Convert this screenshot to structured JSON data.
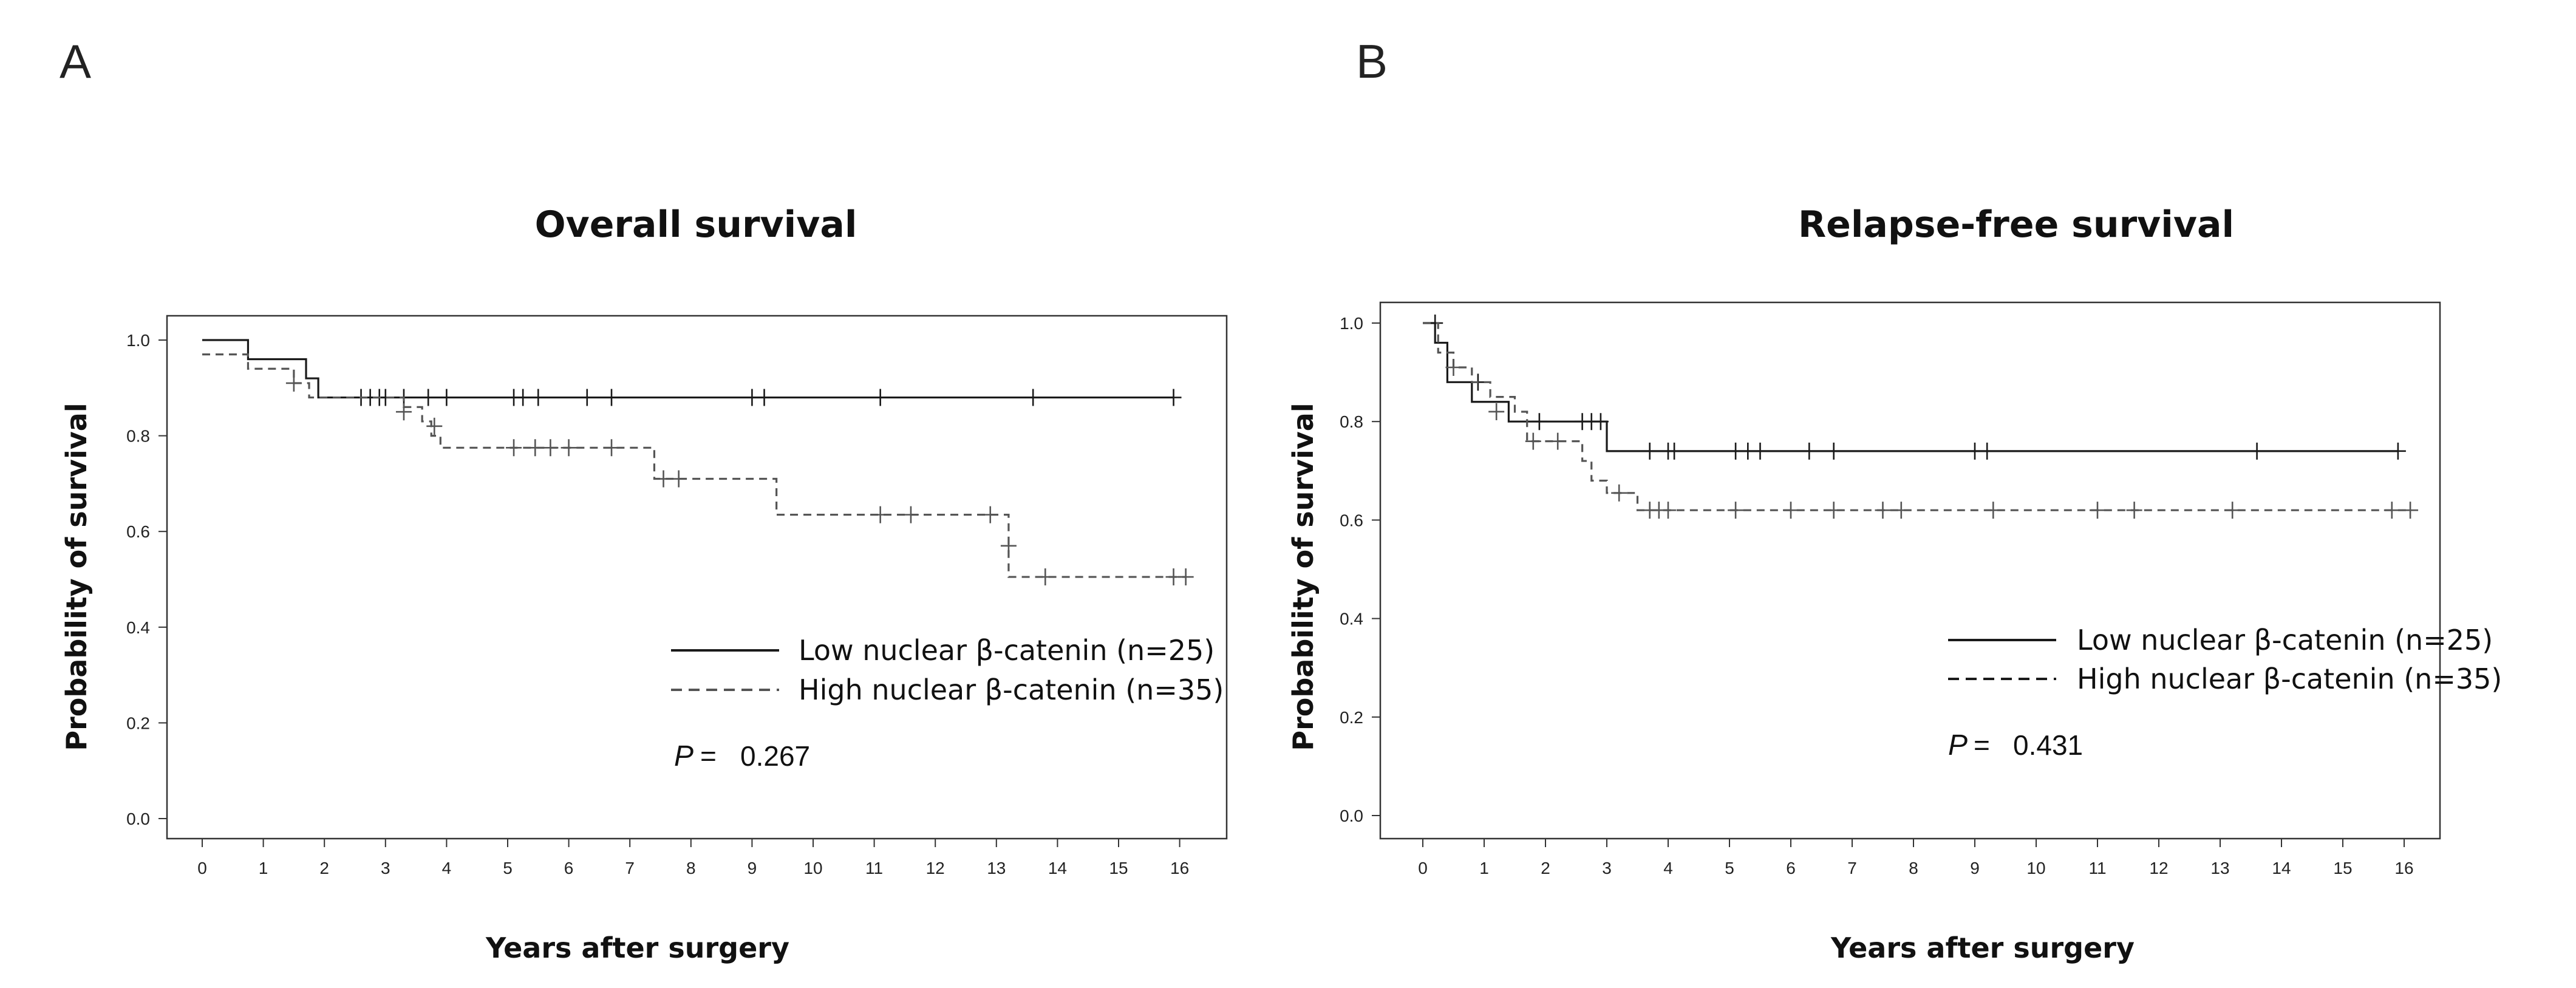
{
  "figure": {
    "panels": [
      "A",
      "B"
    ]
  },
  "chart_data": [
    {
      "panel": "A",
      "type": "line",
      "subtype": "kaplan-meier",
      "title": "Overall survival",
      "xlabel": "Years after surgery",
      "ylabel": "Probability of survival",
      "xlim": [
        0,
        16.5
      ],
      "ylim": [
        0,
        1.0
      ],
      "xticks": [
        0,
        1,
        2,
        3,
        4,
        5,
        6,
        7,
        8,
        9,
        10,
        11,
        12,
        13,
        14,
        15,
        16
      ],
      "yticks": [
        "0.0",
        "0.2",
        "0.4",
        "0.6",
        "0.8",
        "1.0"
      ],
      "series": [
        {
          "name": "Low nuclear β-catenin",
          "n_label": "(n=25)",
          "style": "solid",
          "color": "#1a1a1a",
          "steps": [
            [
              0,
              1.0
            ],
            [
              0.75,
              0.96
            ],
            [
              1.7,
              0.92
            ],
            [
              1.9,
              0.88
            ],
            [
              15.9,
              0.88
            ]
          ],
          "censored": [
            [
              2.6,
              0.88
            ],
            [
              2.75,
              0.88
            ],
            [
              2.9,
              0.88
            ],
            [
              3.0,
              0.88
            ],
            [
              3.3,
              0.88
            ],
            [
              3.7,
              0.88
            ],
            [
              4.0,
              0.88
            ],
            [
              5.1,
              0.88
            ],
            [
              5.25,
              0.88
            ],
            [
              5.5,
              0.88
            ],
            [
              6.3,
              0.88
            ],
            [
              6.7,
              0.88
            ],
            [
              9.0,
              0.88
            ],
            [
              9.2,
              0.88
            ],
            [
              11.1,
              0.88
            ],
            [
              13.6,
              0.88
            ],
            [
              15.9,
              0.88
            ]
          ]
        },
        {
          "name": "High nuclear β-catenin",
          "n_label": "(n=35)",
          "style": "dashed",
          "color": "#555555",
          "steps": [
            [
              0,
              0.97
            ],
            [
              0.75,
              0.94
            ],
            [
              1.5,
              0.91
            ],
            [
              1.75,
              0.88
            ],
            [
              3.3,
              0.86
            ],
            [
              3.6,
              0.83
            ],
            [
              3.75,
              0.8
            ],
            [
              3.9,
              0.775
            ],
            [
              7.4,
              0.71
            ],
            [
              9.4,
              0.635
            ],
            [
              13.2,
              0.57
            ],
            [
              13.2,
              0.505
            ],
            [
              16.1,
              0.505
            ]
          ],
          "censored": [
            [
              1.5,
              0.91
            ],
            [
              3.3,
              0.85
            ],
            [
              3.8,
              0.82
            ],
            [
              5.1,
              0.775
            ],
            [
              5.45,
              0.775
            ],
            [
              5.7,
              0.775
            ],
            [
              6.0,
              0.775
            ],
            [
              6.7,
              0.775
            ],
            [
              7.55,
              0.71
            ],
            [
              7.8,
              0.71
            ],
            [
              11.1,
              0.635
            ],
            [
              11.6,
              0.635
            ],
            [
              12.9,
              0.635
            ],
            [
              13.2,
              0.57
            ],
            [
              13.8,
              0.505
            ],
            [
              15.9,
              0.505
            ],
            [
              16.1,
              0.505
            ]
          ]
        }
      ],
      "p_label": "P",
      "p_eq": "=",
      "p_value": "0.267"
    },
    {
      "panel": "B",
      "type": "line",
      "subtype": "kaplan-meier",
      "title": "Relapse-free survival",
      "xlabel": "Years after surgery",
      "ylabel": "Probability of survival",
      "xlim": [
        0,
        16.5
      ],
      "ylim": [
        0,
        1.0
      ],
      "xticks": [
        0,
        1,
        2,
        3,
        4,
        5,
        6,
        7,
        8,
        9,
        10,
        11,
        12,
        13,
        14,
        15,
        16
      ],
      "yticks": [
        "0.0",
        "0.2",
        "0.4",
        "0.6",
        "0.8",
        "1.0"
      ],
      "series": [
        {
          "name": "Low nuclear β-catenin",
          "n_label": "(n=25)",
          "style": "solid",
          "color": "#1a1a1a",
          "steps": [
            [
              0,
              1.0
            ],
            [
              0.2,
              0.96
            ],
            [
              0.4,
              0.88
            ],
            [
              0.8,
              0.84
            ],
            [
              1.4,
              0.8
            ],
            [
              3.0,
              0.74
            ],
            [
              15.9,
              0.74
            ]
          ],
          "censored": [
            [
              0.2,
              1.0
            ],
            [
              0.9,
              0.88
            ],
            [
              1.9,
              0.8
            ],
            [
              2.6,
              0.8
            ],
            [
              2.75,
              0.8
            ],
            [
              2.9,
              0.8
            ],
            [
              3.7,
              0.74
            ],
            [
              4.0,
              0.74
            ],
            [
              4.1,
              0.74
            ],
            [
              5.1,
              0.74
            ],
            [
              5.3,
              0.74
            ],
            [
              5.5,
              0.74
            ],
            [
              6.3,
              0.74
            ],
            [
              6.7,
              0.74
            ],
            [
              9.0,
              0.74
            ],
            [
              9.2,
              0.74
            ],
            [
              13.6,
              0.74
            ],
            [
              15.9,
              0.74
            ]
          ]
        },
        {
          "name": "High nuclear β-catenin",
          "n_label": "(n=35)",
          "style": "dashed",
          "color": "#555555",
          "steps": [
            [
              0,
              1.0
            ],
            [
              0.25,
              0.94
            ],
            [
              0.5,
              0.91
            ],
            [
              0.8,
              0.88
            ],
            [
              1.1,
              0.85
            ],
            [
              1.5,
              0.82
            ],
            [
              1.7,
              0.76
            ],
            [
              2.6,
              0.72
            ],
            [
              2.75,
              0.68
            ],
            [
              3.0,
              0.655
            ],
            [
              3.5,
              0.62
            ],
            [
              16.1,
              0.62
            ]
          ],
          "censored": [
            [
              0.5,
              0.91
            ],
            [
              1.2,
              0.82
            ],
            [
              1.8,
              0.76
            ],
            [
              2.2,
              0.76
            ],
            [
              3.2,
              0.655
            ],
            [
              3.7,
              0.62
            ],
            [
              3.85,
              0.62
            ],
            [
              4.0,
              0.62
            ],
            [
              5.1,
              0.62
            ],
            [
              6.0,
              0.62
            ],
            [
              6.7,
              0.62
            ],
            [
              7.5,
              0.62
            ],
            [
              7.8,
              0.62
            ],
            [
              9.3,
              0.62
            ],
            [
              11.0,
              0.62
            ],
            [
              11.6,
              0.62
            ],
            [
              13.2,
              0.62
            ],
            [
              15.8,
              0.62
            ],
            [
              16.1,
              0.62
            ]
          ]
        }
      ],
      "p_label": "P",
      "p_eq": "=",
      "p_value": "0.431"
    }
  ]
}
